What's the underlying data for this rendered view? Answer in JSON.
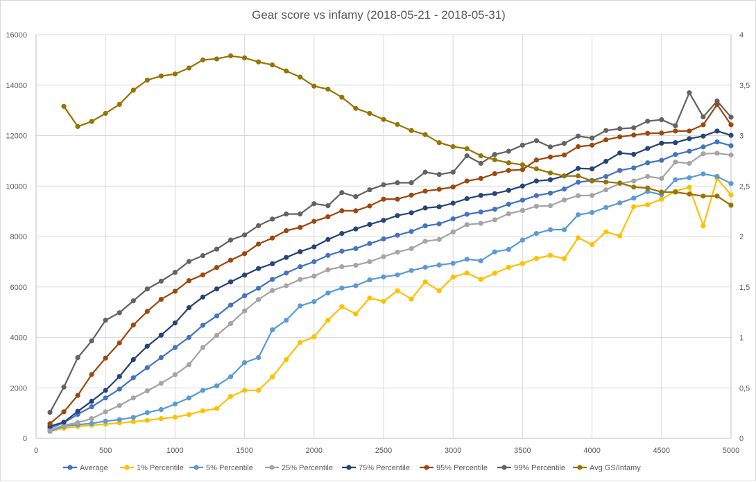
{
  "chart_data": {
    "type": "line",
    "title": "Gear score vs infamy (2018-05-21 - 2018-05-31)",
    "xlabel": "",
    "ylabel": "",
    "y2label": "",
    "xlim": [
      0,
      5000
    ],
    "ylim": [
      0,
      16000
    ],
    "y2lim": [
      0,
      4
    ],
    "x_ticks": [
      "0",
      "500",
      "1000",
      "1500",
      "2000",
      "2500",
      "3000",
      "3500",
      "4000",
      "4500",
      "5000"
    ],
    "y_ticks": [
      "0",
      "2000",
      "4000",
      "6000",
      "8000",
      "10000",
      "12000",
      "14000",
      "16000"
    ],
    "y2_ticks": [
      "0",
      "0,5",
      "1",
      "1,5",
      "2",
      "2,5",
      "3",
      "3,5",
      "4"
    ],
    "grid": true,
    "legend_position": "bottom",
    "x": [
      100,
      200,
      300,
      400,
      500,
      600,
      700,
      800,
      900,
      1000,
      1100,
      1200,
      1300,
      1400,
      1500,
      1600,
      1700,
      1800,
      1900,
      2000,
      2100,
      2200,
      2300,
      2400,
      2500,
      2600,
      2700,
      2800,
      2900,
      3000,
      3100,
      3200,
      3300,
      3400,
      3500,
      3600,
      3700,
      3800,
      3900,
      4000,
      4100,
      4200,
      4300,
      4400,
      4500,
      4600,
      4700,
      4800,
      4900,
      5000
    ],
    "series": [
      {
        "name": "Average",
        "color": "#4472c4",
        "axis": "left",
        "values": [
          400,
          620,
          950,
          1250,
          1600,
          1950,
          2400,
          2800,
          3200,
          3600,
          4000,
          4480,
          4850,
          5280,
          5650,
          5950,
          6300,
          6550,
          6800,
          7000,
          7250,
          7420,
          7520,
          7720,
          7900,
          8050,
          8200,
          8420,
          8500,
          8700,
          8880,
          8970,
          9080,
          9280,
          9440,
          9620,
          9720,
          9880,
          10150,
          10220,
          10380,
          10620,
          10720,
          10920,
          11020,
          11250,
          11380,
          11550,
          11750,
          11600
        ]
      },
      {
        "name": "1% Percentile",
        "color": "#ffc000",
        "axis": "left",
        "values": [
          280,
          400,
          470,
          520,
          560,
          610,
          660,
          710,
          780,
          840,
          940,
          1090,
          1180,
          1660,
          1900,
          1900,
          2430,
          3120,
          3800,
          4020,
          4680,
          5220,
          4930,
          5560,
          5430,
          5850,
          5520,
          6200,
          5850,
          6390,
          6550,
          6300,
          6540,
          6780,
          6930,
          7130,
          7250,
          7120,
          7950,
          7680,
          8180,
          8020,
          9180,
          9260,
          9480,
          9800,
          9950,
          8420,
          10300,
          9650
        ]
      },
      {
        "name": "5% Percentile",
        "color": "#5b9bd5",
        "axis": "left",
        "values": [
          280,
          480,
          540,
          590,
          680,
          740,
          830,
          1020,
          1140,
          1360,
          1600,
          1900,
          2080,
          2440,
          3000,
          3200,
          4300,
          4680,
          5250,
          5420,
          5760,
          5960,
          6050,
          6280,
          6400,
          6480,
          6650,
          6780,
          6870,
          6940,
          7100,
          7040,
          7390,
          7490,
          7860,
          8120,
          8270,
          8270,
          8860,
          8950,
          9150,
          9330,
          9520,
          9780,
          9660,
          10250,
          10330,
          10480,
          10380,
          10100
        ]
      },
      {
        "name": "25% Percentile",
        "color": "#a5a5a5",
        "axis": "left",
        "values": [
          320,
          520,
          620,
          780,
          1050,
          1300,
          1600,
          1880,
          2180,
          2520,
          2920,
          3600,
          4080,
          4550,
          5050,
          5500,
          5860,
          6050,
          6300,
          6430,
          6680,
          6800,
          6860,
          7000,
          7200,
          7380,
          7520,
          7810,
          7880,
          8180,
          8470,
          8520,
          8660,
          8900,
          9030,
          9200,
          9220,
          9450,
          9620,
          9630,
          9850,
          10100,
          10200,
          10380,
          10300,
          10950,
          10900,
          11280,
          11300,
          11230
        ]
      },
      {
        "name": "75% Percentile",
        "color": "#264478",
        "axis": "left",
        "values": [
          480,
          640,
          1070,
          1470,
          1900,
          2450,
          3120,
          3650,
          4090,
          4570,
          5180,
          5600,
          5920,
          6200,
          6470,
          6730,
          6920,
          7170,
          7400,
          7590,
          7880,
          8120,
          8300,
          8480,
          8640,
          8830,
          8940,
          9130,
          9180,
          9320,
          9500,
          9630,
          9700,
          9830,
          10000,
          10200,
          10250,
          10400,
          10700,
          10680,
          10980,
          11310,
          11260,
          11490,
          11700,
          11720,
          11880,
          11980,
          12180,
          12010
        ]
      },
      {
        "name": "95% Percentile",
        "color": "#9e480e",
        "axis": "left",
        "values": [
          580,
          1050,
          1700,
          2530,
          3180,
          3780,
          4490,
          5030,
          5510,
          5830,
          6250,
          6480,
          6770,
          7060,
          7320,
          7700,
          7940,
          8230,
          8360,
          8600,
          8780,
          9020,
          9020,
          9210,
          9480,
          9480,
          9640,
          9800,
          9870,
          9960,
          10200,
          10300,
          10490,
          10620,
          10650,
          11030,
          11150,
          11230,
          11560,
          11620,
          11830,
          11950,
          12020,
          12090,
          12100,
          12180,
          12180,
          12430,
          13230,
          12430
        ]
      },
      {
        "name": "99% Percentile",
        "color": "#636363",
        "axis": "left",
        "values": [
          1030,
          2030,
          3200,
          3860,
          4680,
          4980,
          5450,
          5920,
          6230,
          6580,
          7010,
          7240,
          7500,
          7860,
          8060,
          8430,
          8690,
          8890,
          8890,
          9300,
          9220,
          9740,
          9580,
          9850,
          10050,
          10130,
          10130,
          10550,
          10460,
          10550,
          11200,
          10900,
          11250,
          11380,
          11620,
          11800,
          11550,
          11690,
          11980,
          11900,
          12200,
          12270,
          12310,
          12570,
          12630,
          12390,
          13700,
          12740,
          13370,
          12730
        ]
      },
      {
        "name": "Avg GS/Infamy",
        "color": "#997300",
        "axis": "right",
        "values": [
          null,
          3.29,
          3.09,
          3.14,
          3.22,
          3.31,
          3.45,
          3.55,
          3.59,
          3.61,
          3.67,
          3.75,
          3.76,
          3.79,
          3.77,
          3.73,
          3.7,
          3.64,
          3.58,
          3.49,
          3.46,
          3.38,
          3.27,
          3.22,
          3.16,
          3.11,
          3.05,
          3.01,
          2.93,
          2.89,
          2.87,
          2.8,
          2.76,
          2.73,
          2.71,
          2.67,
          2.63,
          2.6,
          2.6,
          2.55,
          2.54,
          2.53,
          2.49,
          2.48,
          2.44,
          2.44,
          2.42,
          2.4,
          2.4,
          2.31
        ]
      }
    ]
  }
}
